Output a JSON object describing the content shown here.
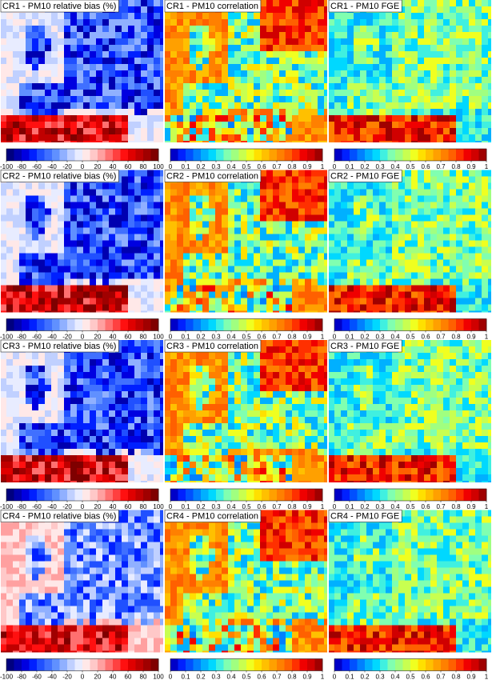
{
  "panels": [
    {
      "title": "CR1 - PM10  relative bias (%)",
      "colorbar": {
        "ticks": [
          -100,
          -80,
          -60,
          -40,
          -20,
          0,
          20,
          40,
          60,
          80,
          100
        ]
      }
    },
    {
      "title": "CR1 - PM10  correlation",
      "colorbar": {
        "ticks": [
          0,
          0.1,
          0.2,
          0.3,
          0.4,
          0.5,
          0.6,
          0.7,
          0.8,
          0.9,
          1
        ]
      }
    },
    {
      "title": "CR1 - PM10  FGE",
      "colorbar": {
        "ticks": [
          0,
          0.1,
          0.2,
          0.3,
          0.4,
          0.5,
          0.6,
          0.7,
          0.8,
          0.9,
          1
        ]
      }
    },
    {
      "title": "CR2 - PM10  relative bias (%)",
      "colorbar": {
        "ticks": [
          -100,
          -80,
          -60,
          -40,
          -20,
          0,
          20,
          40,
          60,
          80,
          100
        ]
      }
    },
    {
      "title": "CR2 - PM10  correlation",
      "colorbar": {
        "ticks": [
          0,
          0.1,
          0.2,
          0.3,
          0.4,
          0.5,
          0.6,
          0.7,
          0.8,
          0.9,
          1
        ]
      }
    },
    {
      "title": "CR2 - PM10  FGE",
      "colorbar": {
        "ticks": [
          0,
          0.1,
          0.2,
          0.3,
          0.4,
          0.5,
          0.6,
          0.7,
          0.8,
          0.9,
          1
        ]
      }
    },
    {
      "title": "CR3 - PM10  relative bias (%)",
      "colorbar": {
        "ticks": [
          -100,
          -80,
          -60,
          -40,
          -20,
          0,
          20,
          40,
          60,
          80,
          100
        ]
      }
    },
    {
      "title": "CR3 - PM10  correlation",
      "colorbar": {
        "ticks": [
          0,
          0.1,
          0.2,
          0.3,
          0.4,
          0.5,
          0.6,
          0.7,
          0.8,
          0.9,
          1
        ]
      }
    },
    {
      "title": "CR3 - PM10  FGE",
      "colorbar": {
        "ticks": [
          0,
          0.1,
          0.2,
          0.3,
          0.4,
          0.5,
          0.6,
          0.7,
          0.8,
          0.9,
          1
        ]
      }
    },
    {
      "title": "CR4 - PM10  relative bias (%)",
      "colorbar": {
        "ticks": [
          -100,
          -80,
          -60,
          -40,
          -20,
          0,
          20,
          40,
          60,
          80,
          100
        ]
      }
    },
    {
      "title": "CR4 - PM10  correlation",
      "colorbar": {
        "ticks": [
          0,
          0.1,
          0.2,
          0.3,
          0.4,
          0.5,
          0.6,
          0.7,
          0.8,
          0.9,
          1
        ]
      }
    },
    {
      "title": "CR4 - PM10  FGE",
      "colorbar": {
        "ticks": [
          0,
          0.1,
          0.2,
          0.3,
          0.4,
          0.5,
          0.6,
          0.7,
          0.8,
          0.9,
          1
        ]
      }
    }
  ]
}
